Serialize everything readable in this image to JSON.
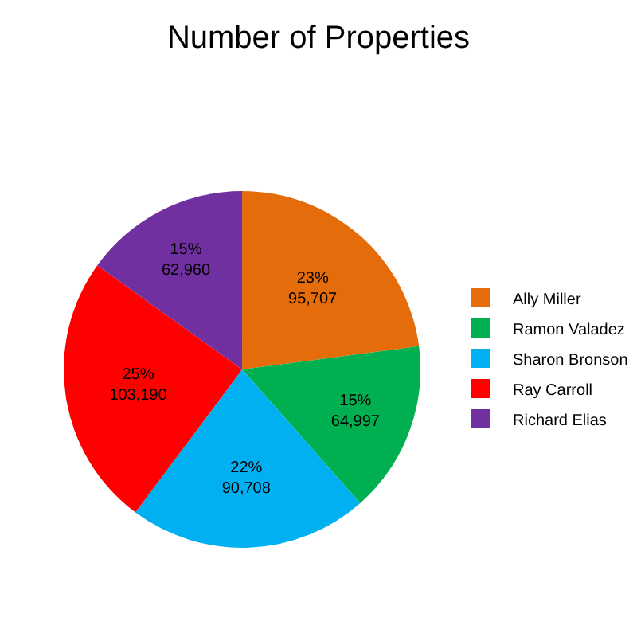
{
  "chart_data": {
    "type": "pie",
    "title": "Number of Properties",
    "categories": [
      "Ally Miller",
      "Ramon Valadez",
      "Sharon Bronson",
      "Ray Carroll",
      "Richard Elias"
    ],
    "values": [
      95707,
      64997,
      90708,
      103190,
      62960
    ],
    "value_labels": [
      "23%\n95,707",
      "15%\n64,997",
      "22%\n90,708",
      "25%\n103,190",
      "15%\n62,960"
    ],
    "colors": [
      "#e46c0a",
      "#00b050",
      "#00b0f0",
      "#ff0000",
      "#7030a0"
    ],
    "legend": "right"
  }
}
